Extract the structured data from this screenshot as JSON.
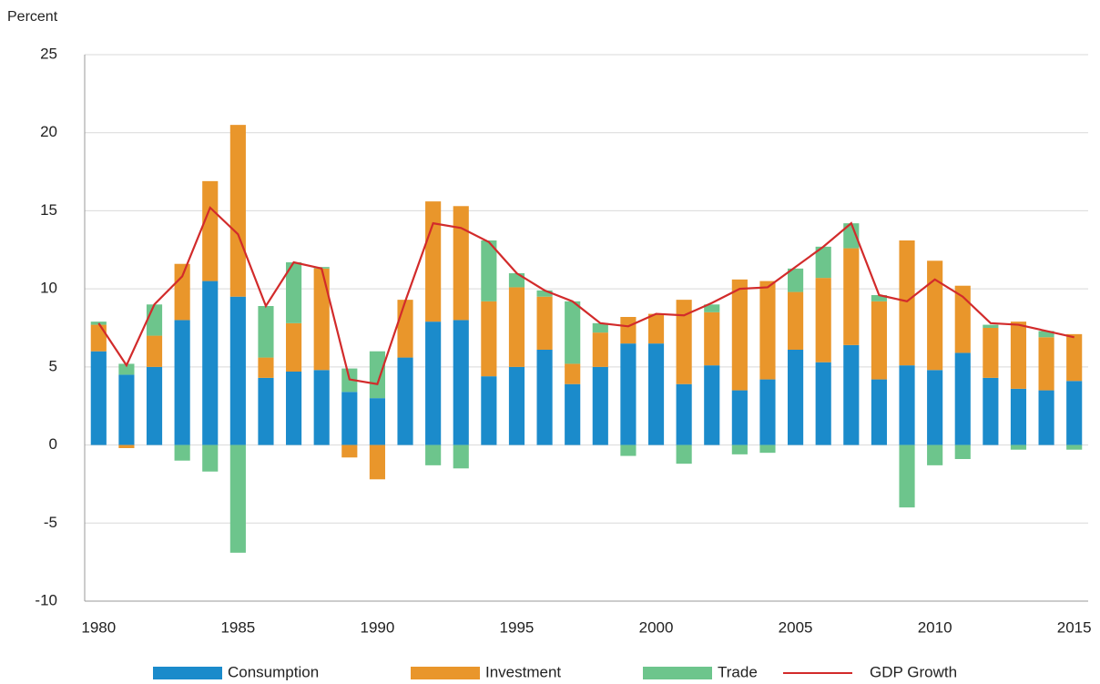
{
  "chart_data": {
    "type": "bar",
    "stacked": true,
    "ylabel": "Percent",
    "categories": [
      "1980",
      null,
      null,
      null,
      null,
      "1985",
      null,
      null,
      null,
      null,
      "1990",
      null,
      null,
      null,
      null,
      "1995",
      null,
      null,
      null,
      null,
      "2000",
      null,
      null,
      null,
      null,
      "2005",
      null,
      null,
      null,
      null,
      "2010",
      null,
      null,
      null,
      null,
      "2015"
    ],
    "series": [
      {
        "name": "Consumption",
        "color": "#1b8bcb",
        "values": [
          6.0,
          4.5,
          5.0,
          8.0,
          10.5,
          9.5,
          4.3,
          4.7,
          4.8,
          3.4,
          3.0,
          5.6,
          7.9,
          8.0,
          4.4,
          5.0,
          6.1,
          3.9,
          5.0,
          6.5,
          6.5,
          3.9,
          5.1,
          3.5,
          4.2,
          6.1,
          5.3,
          6.4,
          4.2,
          5.1,
          4.8,
          5.9,
          4.3,
          3.6,
          3.5,
          4.1
        ]
      },
      {
        "name": "Investment",
        "color": "#e9962b",
        "values": [
          1.7,
          -0.2,
          2.0,
          3.6,
          6.4,
          11.0,
          1.3,
          3.1,
          6.5,
          -0.8,
          -2.2,
          3.7,
          7.7,
          7.3,
          4.8,
          5.1,
          3.4,
          1.3,
          2.2,
          1.7,
          1.9,
          5.4,
          3.4,
          7.1,
          6.3,
          3.7,
          5.4,
          6.2,
          5.0,
          8.0,
          7.0,
          4.3,
          3.2,
          4.3,
          3.4,
          3.0
        ]
      },
      {
        "name": "Trade",
        "color": "#6dc58c",
        "values": [
          0.2,
          0.7,
          2.0,
          -1.0,
          -1.7,
          -6.9,
          3.3,
          3.9,
          0.1,
          1.5,
          3.0,
          0,
          -1.3,
          -1.5,
          3.9,
          0.9,
          0.4,
          4.0,
          0.6,
          -0.7,
          0,
          -1.2,
          0.5,
          -0.6,
          -0.5,
          1.5,
          2.0,
          1.6,
          0.4,
          -4.0,
          -1.3,
          -0.9,
          0.2,
          -0.3,
          0.4,
          -0.3
        ]
      },
      {
        "name": "GDP Growth",
        "type": "line",
        "color": "#d22b2b",
        "values": [
          7.8,
          5.1,
          9.0,
          10.8,
          15.2,
          13.5,
          8.9,
          11.7,
          11.3,
          4.2,
          3.9,
          9.2,
          14.2,
          13.9,
          13.0,
          11.0,
          9.9,
          9.2,
          7.8,
          7.6,
          8.4,
          8.3,
          9.1,
          10.0,
          10.1,
          11.4,
          12.7,
          14.2,
          9.6,
          9.2,
          10.6,
          9.5,
          7.8,
          7.7,
          7.3,
          6.9
        ]
      }
    ],
    "ylim": [
      -10,
      25
    ],
    "yticks": [
      -10,
      -5,
      0,
      5,
      10,
      15,
      20,
      25
    ],
    "grid": true,
    "legend": "bottom"
  }
}
